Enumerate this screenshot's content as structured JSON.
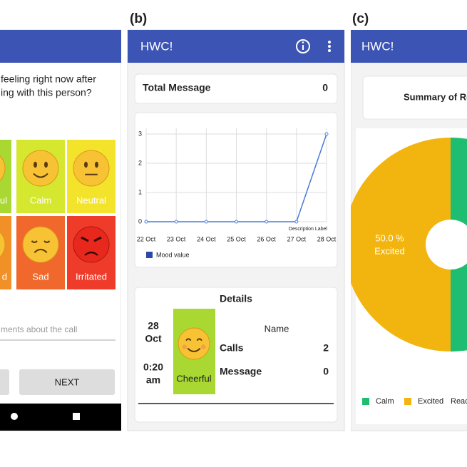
{
  "panel_labels": [
    "(b)",
    "(c)"
  ],
  "panel_a": {
    "question": [
      "feeling right now after",
      "ing with this person?"
    ],
    "moods": [
      {
        "label": "ul",
        "color": "#a9d832"
      },
      {
        "label": "Calm",
        "color": "#d5e82f"
      },
      {
        "label": "Neutral",
        "color": "#f3e42b"
      },
      {
        "label": "d",
        "color": "#f19027"
      },
      {
        "label": "Sad",
        "color": "#f0682b"
      },
      {
        "label": "Irritated",
        "color": "#ef3b2a"
      }
    ],
    "comment_placeholder": "ments about the call",
    "next_button": "NEXT"
  },
  "panel_b": {
    "app_title": "HWC!",
    "total_label": "Total Message",
    "total_value": 0,
    "details": {
      "title": "Details",
      "date_lines": [
        "28",
        "Oct"
      ],
      "time_lines": [
        "0:20",
        "am"
      ],
      "mood": "Cheerful",
      "name_label": "Name",
      "calls_label": "Calls",
      "calls_value": 2,
      "message_label": "Message",
      "message_value": 0
    }
  },
  "panel_c": {
    "app_title": "HWC!",
    "summary_title": "Summary of Re",
    "legend_more": "Reac"
  },
  "chart_data": [
    {
      "type": "line",
      "categories": [
        "22 Oct",
        "23 Oct",
        "24 Oct",
        "25 Oct",
        "26 Oct",
        "27 Oct",
        "28 Oct"
      ],
      "series": [
        {
          "name": "Mood value",
          "color": "#4a7bd6",
          "legend_color": "#2b4aa8",
          "values": [
            0,
            0,
            0,
            0,
            0,
            0,
            3
          ]
        }
      ],
      "ylim": [
        0,
        3
      ],
      "yticks": [
        0,
        1,
        2,
        3
      ],
      "grid": true,
      "annotation": "Description Label"
    },
    {
      "type": "pie",
      "categories": [
        "Calm",
        "Excited"
      ],
      "values": [
        50,
        50
      ],
      "value_labels": [
        null,
        "50.0 %"
      ],
      "colors": [
        "#1fbd72",
        "#f2b50f"
      ],
      "donut": true
    }
  ]
}
